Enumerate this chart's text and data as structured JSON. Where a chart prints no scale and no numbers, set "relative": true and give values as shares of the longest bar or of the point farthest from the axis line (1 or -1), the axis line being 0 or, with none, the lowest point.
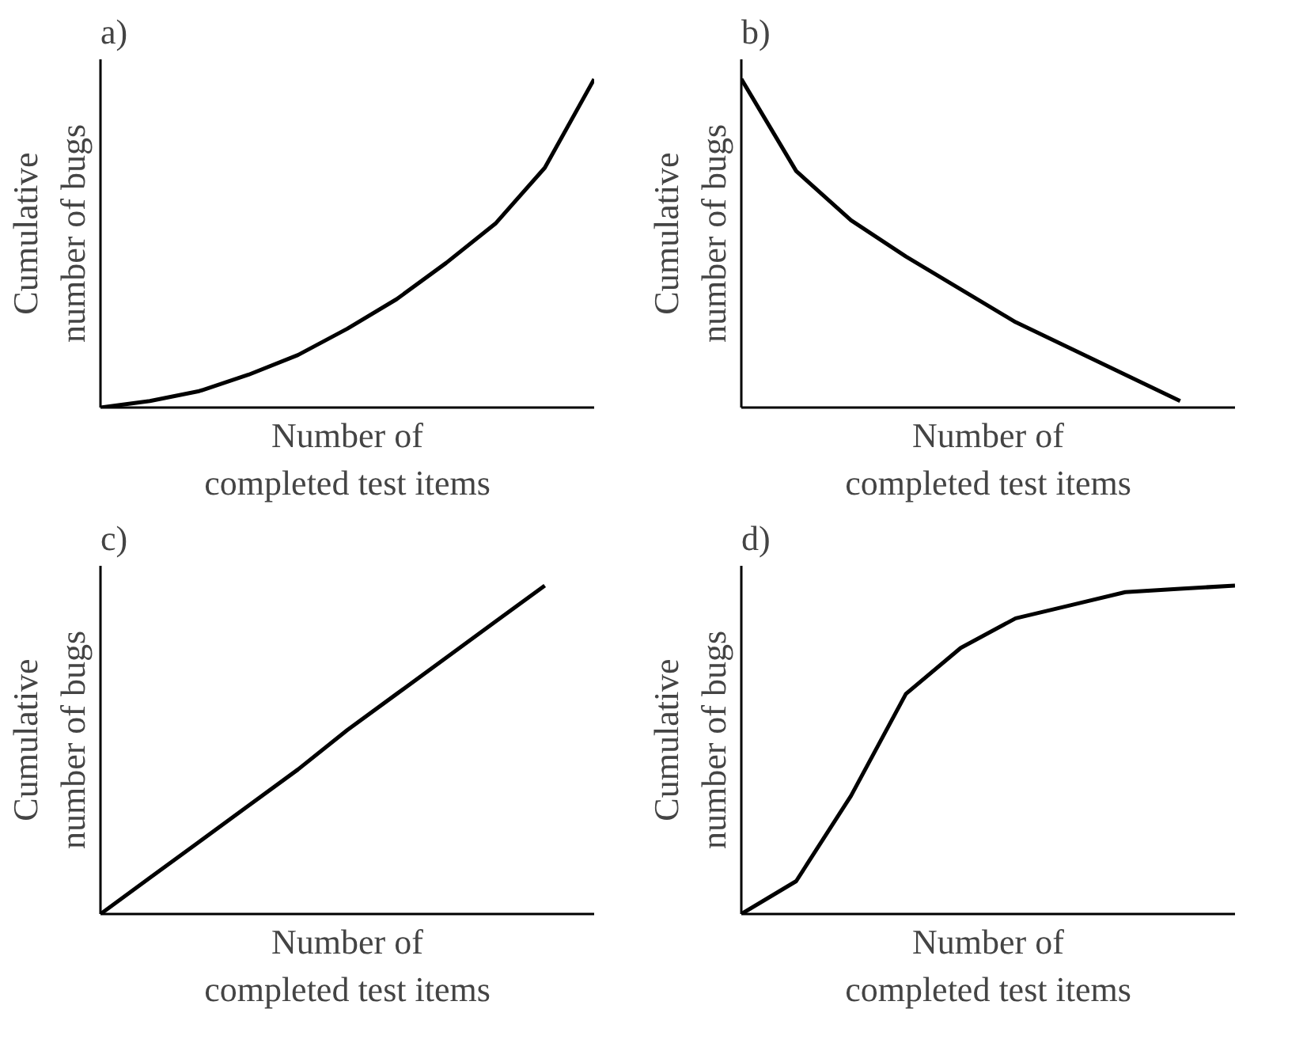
{
  "chart_data": [
    {
      "type": "line",
      "title": "a)",
      "xlabel": "Number of\ncompleted test items",
      "ylabel": "Cumulative\nnumber of bugs",
      "relative": true,
      "tick_labels": false,
      "categories": [
        null,
        null,
        null,
        null,
        null,
        null,
        null,
        null,
        null,
        null,
        null
      ],
      "series": [
        {
          "color": "#000000",
          "values": [
            0,
            0.02,
            0.05,
            0.1,
            0.16,
            0.24,
            0.33,
            0.44,
            0.56,
            0.73,
            1
          ]
        }
      ]
    },
    {
      "type": "line",
      "title": "b)",
      "xlabel": "Number of\ncompleted test items",
      "ylabel": "Cumulative\nnumber of bugs",
      "relative": true,
      "tick_labels": false,
      "categories": [
        null,
        null,
        null,
        null,
        null,
        null,
        null,
        null,
        null,
        null
      ],
      "series": [
        {
          "color": "#000000",
          "values": [
            1,
            0.72,
            0.57,
            0.46,
            0.36,
            0.26,
            0.18,
            0.1,
            0.02,
            null
          ]
        }
      ]
    },
    {
      "type": "line",
      "title": "c)",
      "xlabel": "Number of\ncompleted test items",
      "ylabel": "Cumulative\nnumber of bugs",
      "relative": true,
      "tick_labels": false,
      "categories": [
        null,
        null,
        null,
        null,
        null,
        null,
        null,
        null,
        null,
        null,
        null
      ],
      "series": [
        {
          "color": "#000000",
          "values": [
            0,
            0.11,
            0.22,
            0.33,
            0.44,
            0.56,
            0.67,
            0.78,
            0.89,
            1,
            null
          ]
        }
      ]
    },
    {
      "type": "line",
      "title": "d)",
      "xlabel": "Number of\ncompleted test items",
      "ylabel": "Cumulative\nnumber of bugs",
      "relative": true,
      "tick_labels": false,
      "categories": [
        null,
        null,
        null,
        null,
        null,
        null,
        null,
        null,
        null,
        null
      ],
      "series": [
        {
          "color": "#000000",
          "values": [
            0,
            0.1,
            0.36,
            0.67,
            0.81,
            0.9,
            0.94,
            0.98,
            0.99,
            1
          ]
        }
      ]
    }
  ]
}
